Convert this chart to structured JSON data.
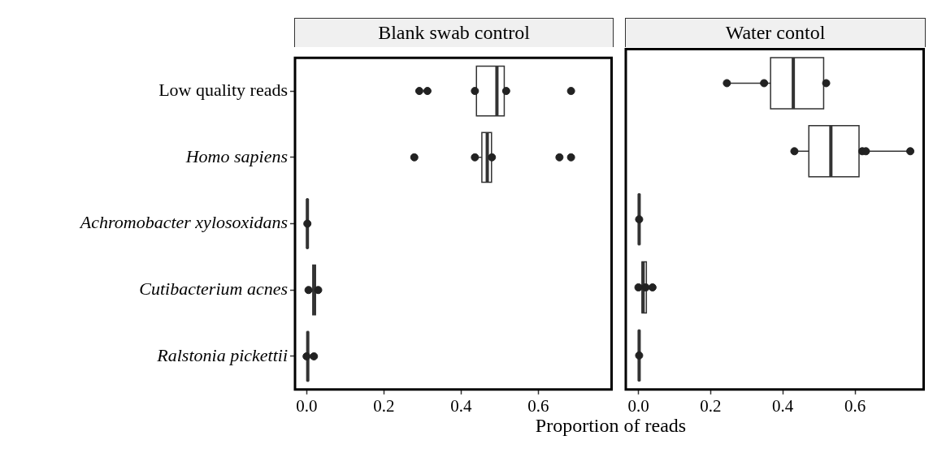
{
  "chart_data": [
    {
      "type": "box",
      "title": "Blank swab control",
      "xlabel": "Proportion of reads",
      "orientation": "horizontal",
      "categories": [
        "Low quality reads",
        "Homo sapiens",
        "Achromobacter xylosoxidans",
        "Cutibacterium acnes",
        "Ralstonia pickettii"
      ],
      "xlim": [
        -0.03,
        0.79
      ],
      "xticks": [
        {
          "value": 0,
          "label": "0.0"
        },
        0.2,
        0.4,
        0.6
      ],
      "grid": false,
      "series": [
        {
          "color": "#333333",
          "boxes": [
            {
              "low": 0.436,
              "q1": 0.44,
              "median": 0.493,
              "q3": 0.512,
              "high": 0.517
            },
            {
              "low": 0.436,
              "q1": 0.454,
              "median": 0.468,
              "q3": 0.479,
              "high": 0.48
            },
            {
              "low": 0.001,
              "q1": 0.001,
              "median": 0.002,
              "q3": 0.003,
              "high": 0.003
            },
            {
              "low": 0.005,
              "q1": 0.016,
              "median": 0.02,
              "q3": 0.023,
              "high": 0.03
            },
            {
              "low": 0.0,
              "q1": 0.002,
              "median": 0.003,
              "q3": 0.004,
              "high": 0.005
            }
          ]
        },
        {
          "type": "scatter",
          "color": "#222222",
          "x": [
            "Low quality reads",
            "Low quality reads",
            "Low quality reads",
            "Low quality reads",
            "Low quality reads",
            "Homo sapiens",
            "Homo sapiens",
            "Homo sapiens",
            "Homo sapiens",
            "Homo sapiens",
            "Achromobacter xylosoxidans",
            "Cutibacterium acnes",
            "Cutibacterium acnes",
            "Ralstonia pickettii",
            "Ralstonia pickettii"
          ],
          "values": [
            0.292,
            0.313,
            0.436,
            0.517,
            0.685,
            0.279,
            0.436,
            0.48,
            0.655,
            0.685,
            0.002,
            0.005,
            0.03,
            0.0,
            0.019
          ]
        }
      ]
    },
    {
      "type": "box",
      "title": "Water contol",
      "orientation": "horizontal",
      "categories": [
        "Low quality reads",
        "Homo sapiens",
        "Achromobacter xylosoxidans",
        "Cutibacterium acnes",
        "Ralstonia pickettii"
      ],
      "xlim": [
        -0.035,
        0.79
      ],
      "xticks": [
        {
          "value": 0,
          "label": "0.0"
        },
        0.2,
        0.4,
        0.6
      ],
      "grid": false,
      "tick_labels": "x",
      "series": [
        {
          "color": "#333333",
          "boxes": [
            {
              "low": 0.245,
              "q1": 0.366,
              "median": 0.429,
              "q3": 0.513,
              "high": 0.52
            },
            {
              "low": 0.432,
              "q1": 0.472,
              "median": 0.533,
              "q3": 0.611,
              "high": 0.753
            },
            {
              "low": 0.001,
              "q1": 0.001,
              "median": 0.002,
              "q3": 0.003,
              "high": 0.003
            },
            {
              "low": 0.0,
              "q1": 0.01,
              "median": 0.013,
              "q3": 0.022,
              "high": 0.025
            },
            {
              "low": 0.001,
              "q1": 0.001,
              "median": 0.002,
              "q3": 0.003,
              "high": 0.003
            }
          ]
        },
        {
          "type": "scatter",
          "color": "#222222",
          "x": [
            "Low quality reads",
            "Low quality reads",
            "Low quality reads",
            "Homo sapiens",
            "Homo sapiens",
            "Homo sapiens",
            "Homo sapiens",
            "Achromobacter xylosoxidans",
            "Cutibacterium acnes",
            "Cutibacterium acnes",
            "Cutibacterium acnes",
            "Ralstonia pickettii"
          ],
          "values": [
            0.245,
            0.348,
            0.52,
            0.432,
            0.62,
            0.63,
            0.753,
            0.002,
            0.0,
            0.02,
            0.039,
            0.002
          ]
        }
      ]
    }
  ]
}
